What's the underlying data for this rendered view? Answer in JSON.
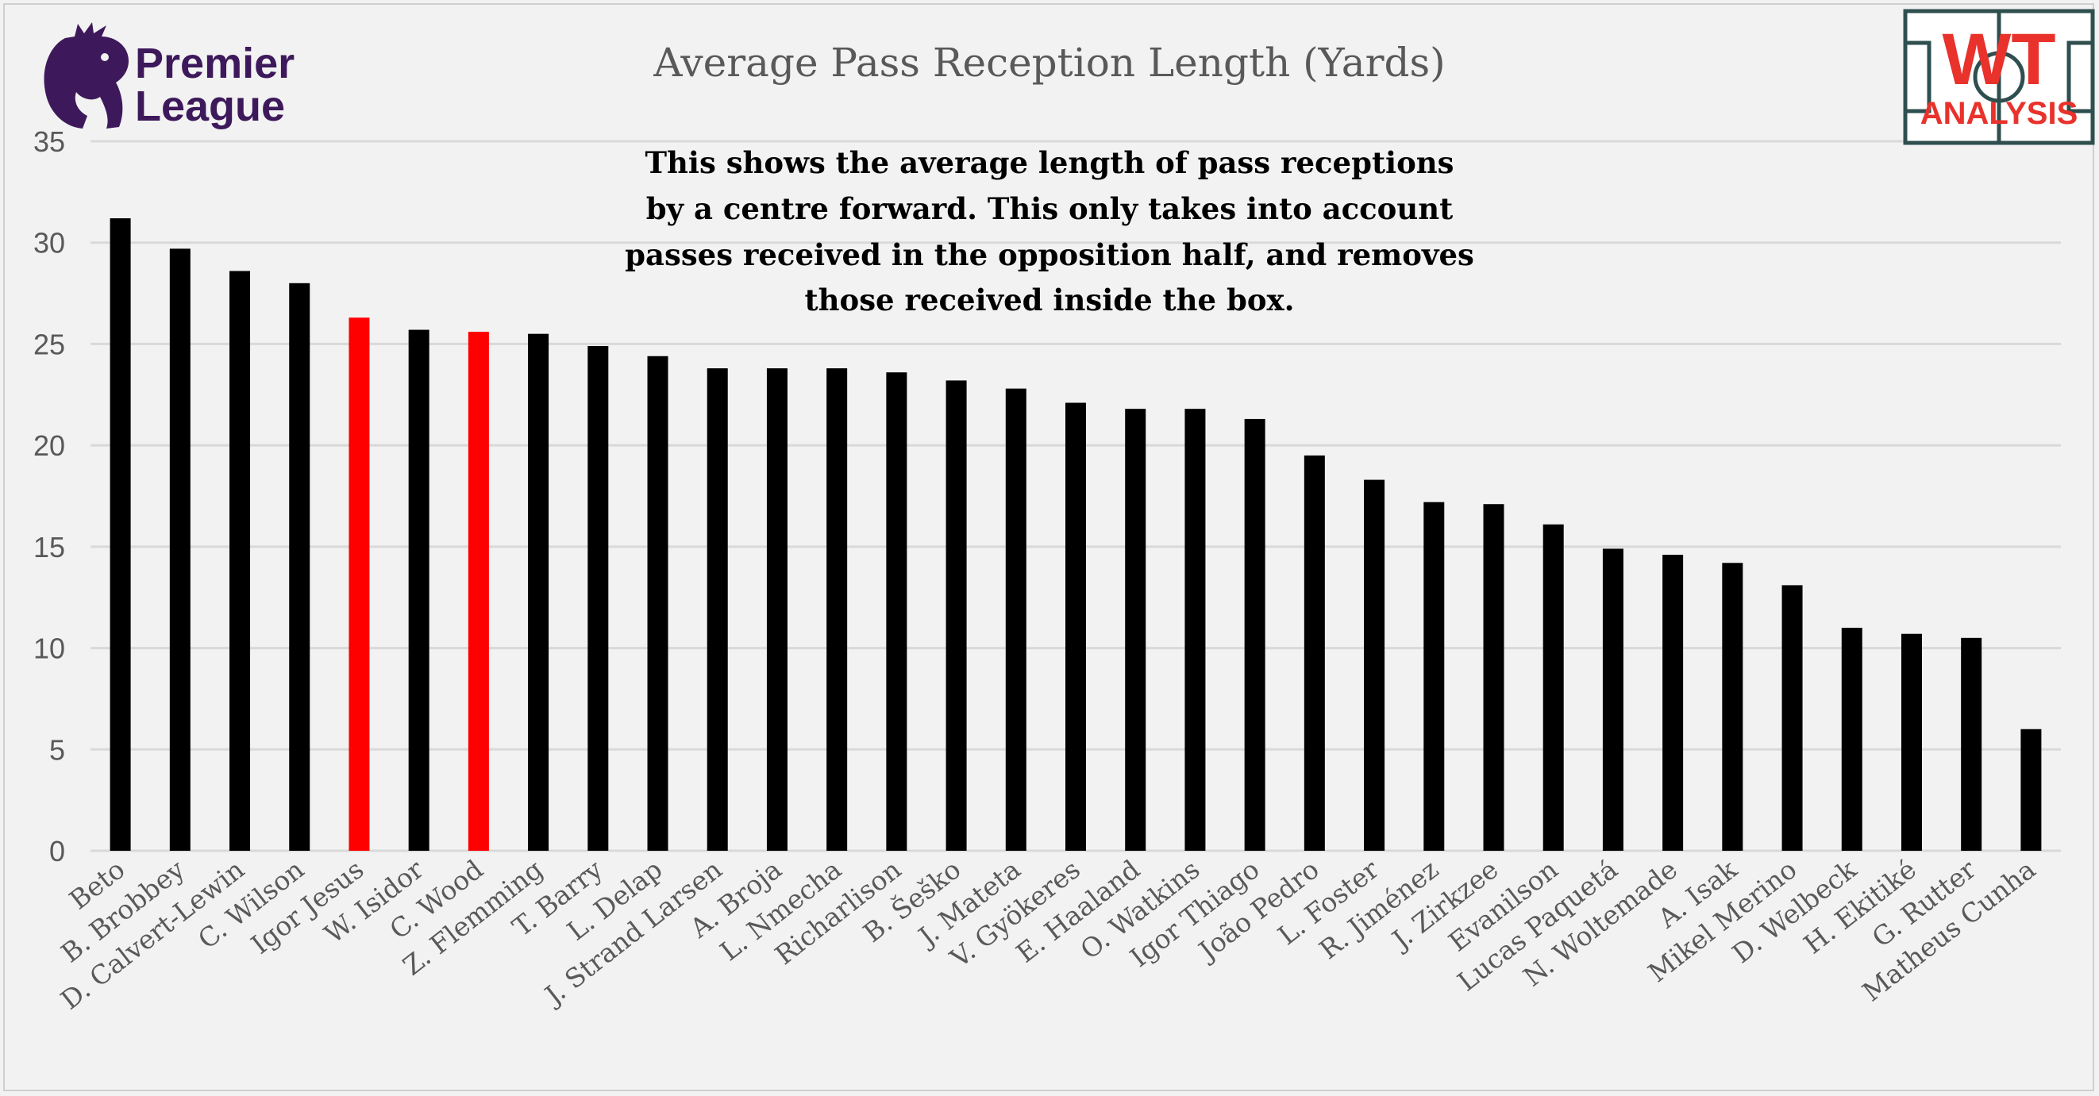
{
  "branding": {
    "league_line1": "Premier",
    "league_line2": "League",
    "wt_top": "WT",
    "wt_bottom": "ANALYSIS"
  },
  "colors": {
    "background": "#f2f2f2",
    "bar_default": "#000000",
    "bar_highlight": "#ff0000",
    "grid": "#d9d9d9",
    "title": "#595959",
    "league_purple": "#3d195b",
    "wt_red": "#e8322b",
    "wt_green": "#2f4f4f"
  },
  "chart_data": {
    "type": "bar",
    "title": "Average Pass Reception Length (Yards)",
    "annotation": [
      "This shows the average length of pass receptions",
      "by a centre forward. This only takes into account",
      "passes received in the opposition half, and removes",
      "those received inside the box."
    ],
    "xlabel": "",
    "ylabel": "",
    "ylim": [
      0,
      35
    ],
    "yticks": [
      0,
      5,
      10,
      15,
      20,
      25,
      30,
      35
    ],
    "grid": true,
    "categories": [
      "Beto",
      "B. Brobbey",
      "D. Calvert-Lewin",
      "C. Wilson",
      "Igor Jesus",
      "W. Isidor",
      "C. Wood",
      "Z. Flemming",
      "T. Barry",
      "L. Delap",
      "J. Strand Larsen",
      "A. Broja",
      "L. Nmecha",
      "Richarlison",
      "B. Šeško",
      "J. Mateta",
      "V. Gyökeres",
      "E. Haaland",
      "O. Watkins",
      "Igor Thiago",
      "João Pedro",
      "L. Foster",
      "R. Jiménez",
      "J. Zirkzee",
      "Evanilson",
      "Lucas Paquetá",
      "N. Woltemade",
      "A. Isak",
      "Mikel Merino",
      "D. Welbeck",
      "H. Ekitiké",
      "G. Rutter",
      "Matheus Cunha"
    ],
    "values": [
      31.2,
      29.7,
      28.6,
      28.0,
      26.3,
      25.7,
      25.6,
      25.5,
      24.9,
      24.4,
      23.8,
      23.8,
      23.8,
      23.6,
      23.2,
      22.8,
      22.1,
      21.8,
      21.8,
      21.3,
      19.5,
      18.3,
      17.2,
      17.1,
      16.1,
      14.9,
      14.6,
      14.2,
      13.1,
      11.0,
      10.7,
      10.5,
      6.0
    ],
    "highlighted": [
      "Igor Jesus",
      "C. Wood"
    ]
  }
}
